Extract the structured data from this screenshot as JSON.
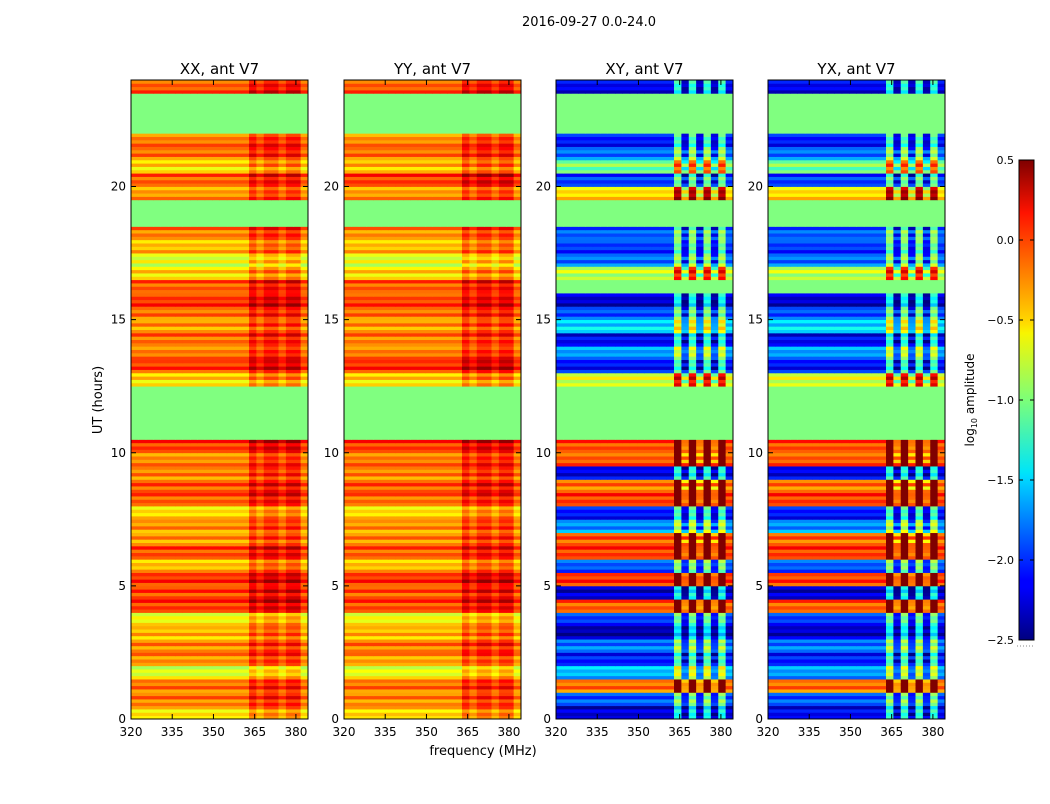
{
  "chart_data": {
    "type": "heatmap",
    "title": "2016-09-27 0.0-24.0",
    "xlabel": "frequency (MHz)",
    "ylabel": "UT (hours)",
    "xlim": [
      320,
      384.4
    ],
    "ylim": [
      0,
      24
    ],
    "xticks": [
      320,
      335,
      350,
      365,
      380
    ],
    "yticks": [
      0,
      5,
      10,
      15,
      20
    ],
    "row_step_hours": 0.5,
    "high_band_mhz": [
      362,
      381
    ],
    "colorbar": {
      "label_main": "log",
      "label_sub": "10",
      "label_rest": " amplitude",
      "range": [
        -2.5,
        0.5
      ],
      "ticks": [
        "0.5",
        "0.0",
        "−0.5",
        "−1.0",
        "−1.5",
        "−2.0",
        "−2.5"
      ],
      "tick_values": [
        0.5,
        0.0,
        -0.5,
        -1.0,
        -1.5,
        -2.0,
        -2.5
      ],
      "colormap": "jet"
    },
    "panels": [
      {
        "title": "XX, ant V7",
        "high_band_shift": 0.3,
        "rows": [
          -0.6,
          -0.3,
          -0.3,
          -0.8,
          -0.35,
          -0.35,
          -0.5,
          -0.7,
          -0.1,
          -0.15,
          -0.1,
          -0.5,
          -0.15,
          -0.4,
          -0.4,
          -0.6,
          -0.2,
          -0.2,
          -0.35,
          -0.35,
          -0.1,
          -1.0,
          -1.0,
          -1.0,
          -1.0,
          -0.6,
          -0.15,
          -0.3,
          -0.25,
          -0.4,
          -0.3,
          -0.1,
          -0.2,
          -0.6,
          -0.8,
          -0.5,
          -0.3,
          -1.0,
          -1.0,
          -0.4,
          -0.2,
          -0.6,
          -0.3,
          -0.3,
          -1.0,
          -1.0,
          -1.0,
          -0.2
        ]
      },
      {
        "title": "YY, ant V7",
        "high_band_shift": 0.3,
        "rows": [
          -0.55,
          -0.35,
          -0.3,
          -0.75,
          -0.4,
          -0.3,
          -0.5,
          -0.7,
          -0.15,
          -0.2,
          -0.1,
          -0.5,
          -0.2,
          -0.35,
          -0.4,
          -0.6,
          -0.25,
          -0.2,
          -0.35,
          -0.3,
          -0.1,
          -1.0,
          -1.0,
          -1.0,
          -1.0,
          -0.6,
          -0.1,
          -0.3,
          -0.3,
          -0.4,
          -0.3,
          -0.15,
          -0.2,
          -0.6,
          -0.8,
          -0.5,
          -0.35,
          -1.0,
          -1.0,
          -0.4,
          -0.1,
          -0.5,
          -0.3,
          -0.35,
          -1.0,
          -1.0,
          -1.0,
          -0.2
        ]
      },
      {
        "title": "XY, ant V7",
        "high_band_shift": 0.9,
        "rows": [
          -2.2,
          -1.8,
          -0.3,
          -1.5,
          -2.0,
          -1.7,
          -2.3,
          -1.9,
          -0.2,
          -2.2,
          -0.1,
          -1.8,
          -0.1,
          -0.2,
          -1.6,
          -2.0,
          -0.1,
          -0.3,
          -2.1,
          -0.2,
          -0.15,
          -1.0,
          -1.0,
          -1.0,
          -1.0,
          -0.8,
          -2.0,
          -1.6,
          -2.1,
          -1.4,
          -1.8,
          -2.2,
          -1.0,
          -0.9,
          -1.7,
          -1.9,
          -1.8,
          -1.0,
          -1.0,
          -0.6,
          -1.9,
          -1.1,
          -1.7,
          -2.0,
          -1.0,
          -1.0,
          -1.0,
          -2.1
        ]
      },
      {
        "title": "YX, ant V7",
        "high_band_shift": 0.9,
        "rows": [
          -2.1,
          -1.8,
          -0.3,
          -1.6,
          -2.0,
          -1.7,
          -2.2,
          -1.9,
          -0.2,
          -2.2,
          -0.15,
          -1.8,
          -0.1,
          -0.25,
          -1.6,
          -2.0,
          -0.1,
          -0.3,
          -2.1,
          -0.2,
          -0.15,
          -1.0,
          -1.0,
          -1.0,
          -1.0,
          -0.8,
          -2.0,
          -1.6,
          -2.1,
          -1.4,
          -1.8,
          -2.2,
          -1.0,
          -0.9,
          -1.7,
          -1.9,
          -1.8,
          -1.0,
          -1.0,
          -0.6,
          -1.9,
          -1.1,
          -1.7,
          -2.0,
          -1.0,
          -1.0,
          -1.0,
          -2.1
        ]
      }
    ]
  }
}
